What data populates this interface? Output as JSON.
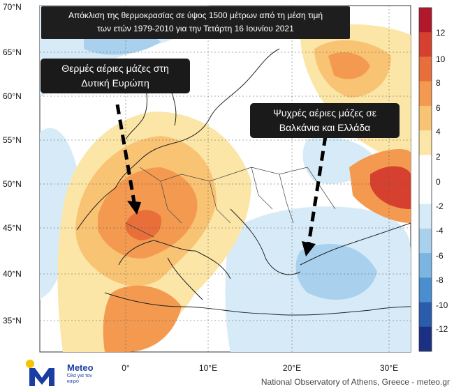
{
  "title": {
    "line1": "Απόκλιση της θερμοκρασίας σε ύψος 1500 μέτρων από τη μέση τιμή",
    "line2": "των ετών 1979-2010 για την Τετάρτη 16 Ιουνίου 2021"
  },
  "annotations": {
    "warm": {
      "line1": "Θερμές αέριες μάζες στη",
      "line2": "Δυτική Ευρώπη"
    },
    "cold": {
      "line1": "Ψυχρές αέριες μάζες σε",
      "line2": "Βαλκάνια και Ελλάδα"
    }
  },
  "lat_ticks": [
    "70°N",
    "65°N",
    "60°N",
    "55°N",
    "50°N",
    "45°N",
    "40°N",
    "35°N"
  ],
  "lon_ticks": [
    "0°",
    "10°E",
    "20°E",
    "30°E"
  ],
  "colorbar": {
    "ticks": [
      "12",
      "10",
      "8",
      "6",
      "4",
      "2",
      "0",
      "-2",
      "-4",
      "-6",
      "-8",
      "-10",
      "-12"
    ],
    "colors": [
      "#b2182b",
      "#d6402f",
      "#e96f3a",
      "#f39a50",
      "#f9c374",
      "#fbe6a8",
      "#ffffff",
      "#ffffff",
      "#d6ebf7",
      "#a9d1ee",
      "#7bb6e2",
      "#4a8ed0",
      "#2a5cae",
      "#1a3083"
    ]
  },
  "logo": {
    "name": "Meteo",
    "tagline": "Όλα για τον καιρό"
  },
  "credit": "National Observatory of Athens, Greece - meteo.gr"
}
